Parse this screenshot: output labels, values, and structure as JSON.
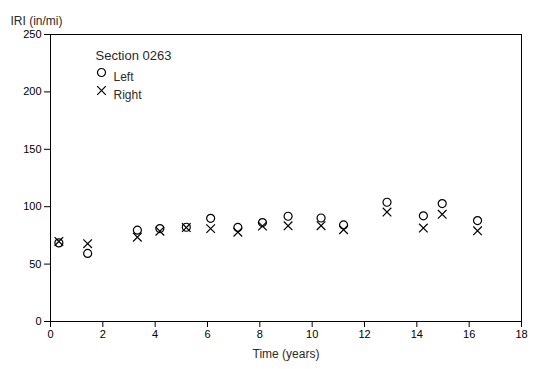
{
  "chart_data": {
    "type": "scatter",
    "x": [
      0.32,
      1.42,
      3.32,
      4.18,
      5.19,
      6.12,
      7.16,
      8.1,
      9.08,
      10.34,
      11.2,
      12.86,
      14.25,
      14.97,
      16.32
    ],
    "series": [
      {
        "name": "Left",
        "color": "#000000",
        "marker": "circle",
        "values": [
          68.49,
          59.29,
          79.56,
          80.98,
          82.12,
          89.9,
          81.92,
          86.2,
          91.68,
          90.16,
          84.16,
          103.86,
          92.06,
          102.69,
          87.91
        ]
      },
      {
        "name": "Right",
        "color": "#000000",
        "marker": "x",
        "values": [
          69.71,
          67.81,
          73.48,
          78.63,
          81.84,
          80.9,
          77.83,
          83.08,
          83.38,
          83.44,
          79.95,
          95.34,
          81.43,
          93.38,
          78.99
        ]
      }
    ],
    "xlabel": "Time (years)",
    "ylabel": "IRI (in/mi)",
    "annotation": "Section 0263",
    "xlim": [
      0,
      18
    ],
    "ylim": [
      0,
      250
    ],
    "xticks": [
      0,
      2,
      4,
      6,
      8,
      10,
      12,
      14,
      16,
      18
    ],
    "yticks": [
      0,
      50,
      100,
      150,
      200,
      250
    ],
    "legend": "upper left",
    "grid": false
  }
}
